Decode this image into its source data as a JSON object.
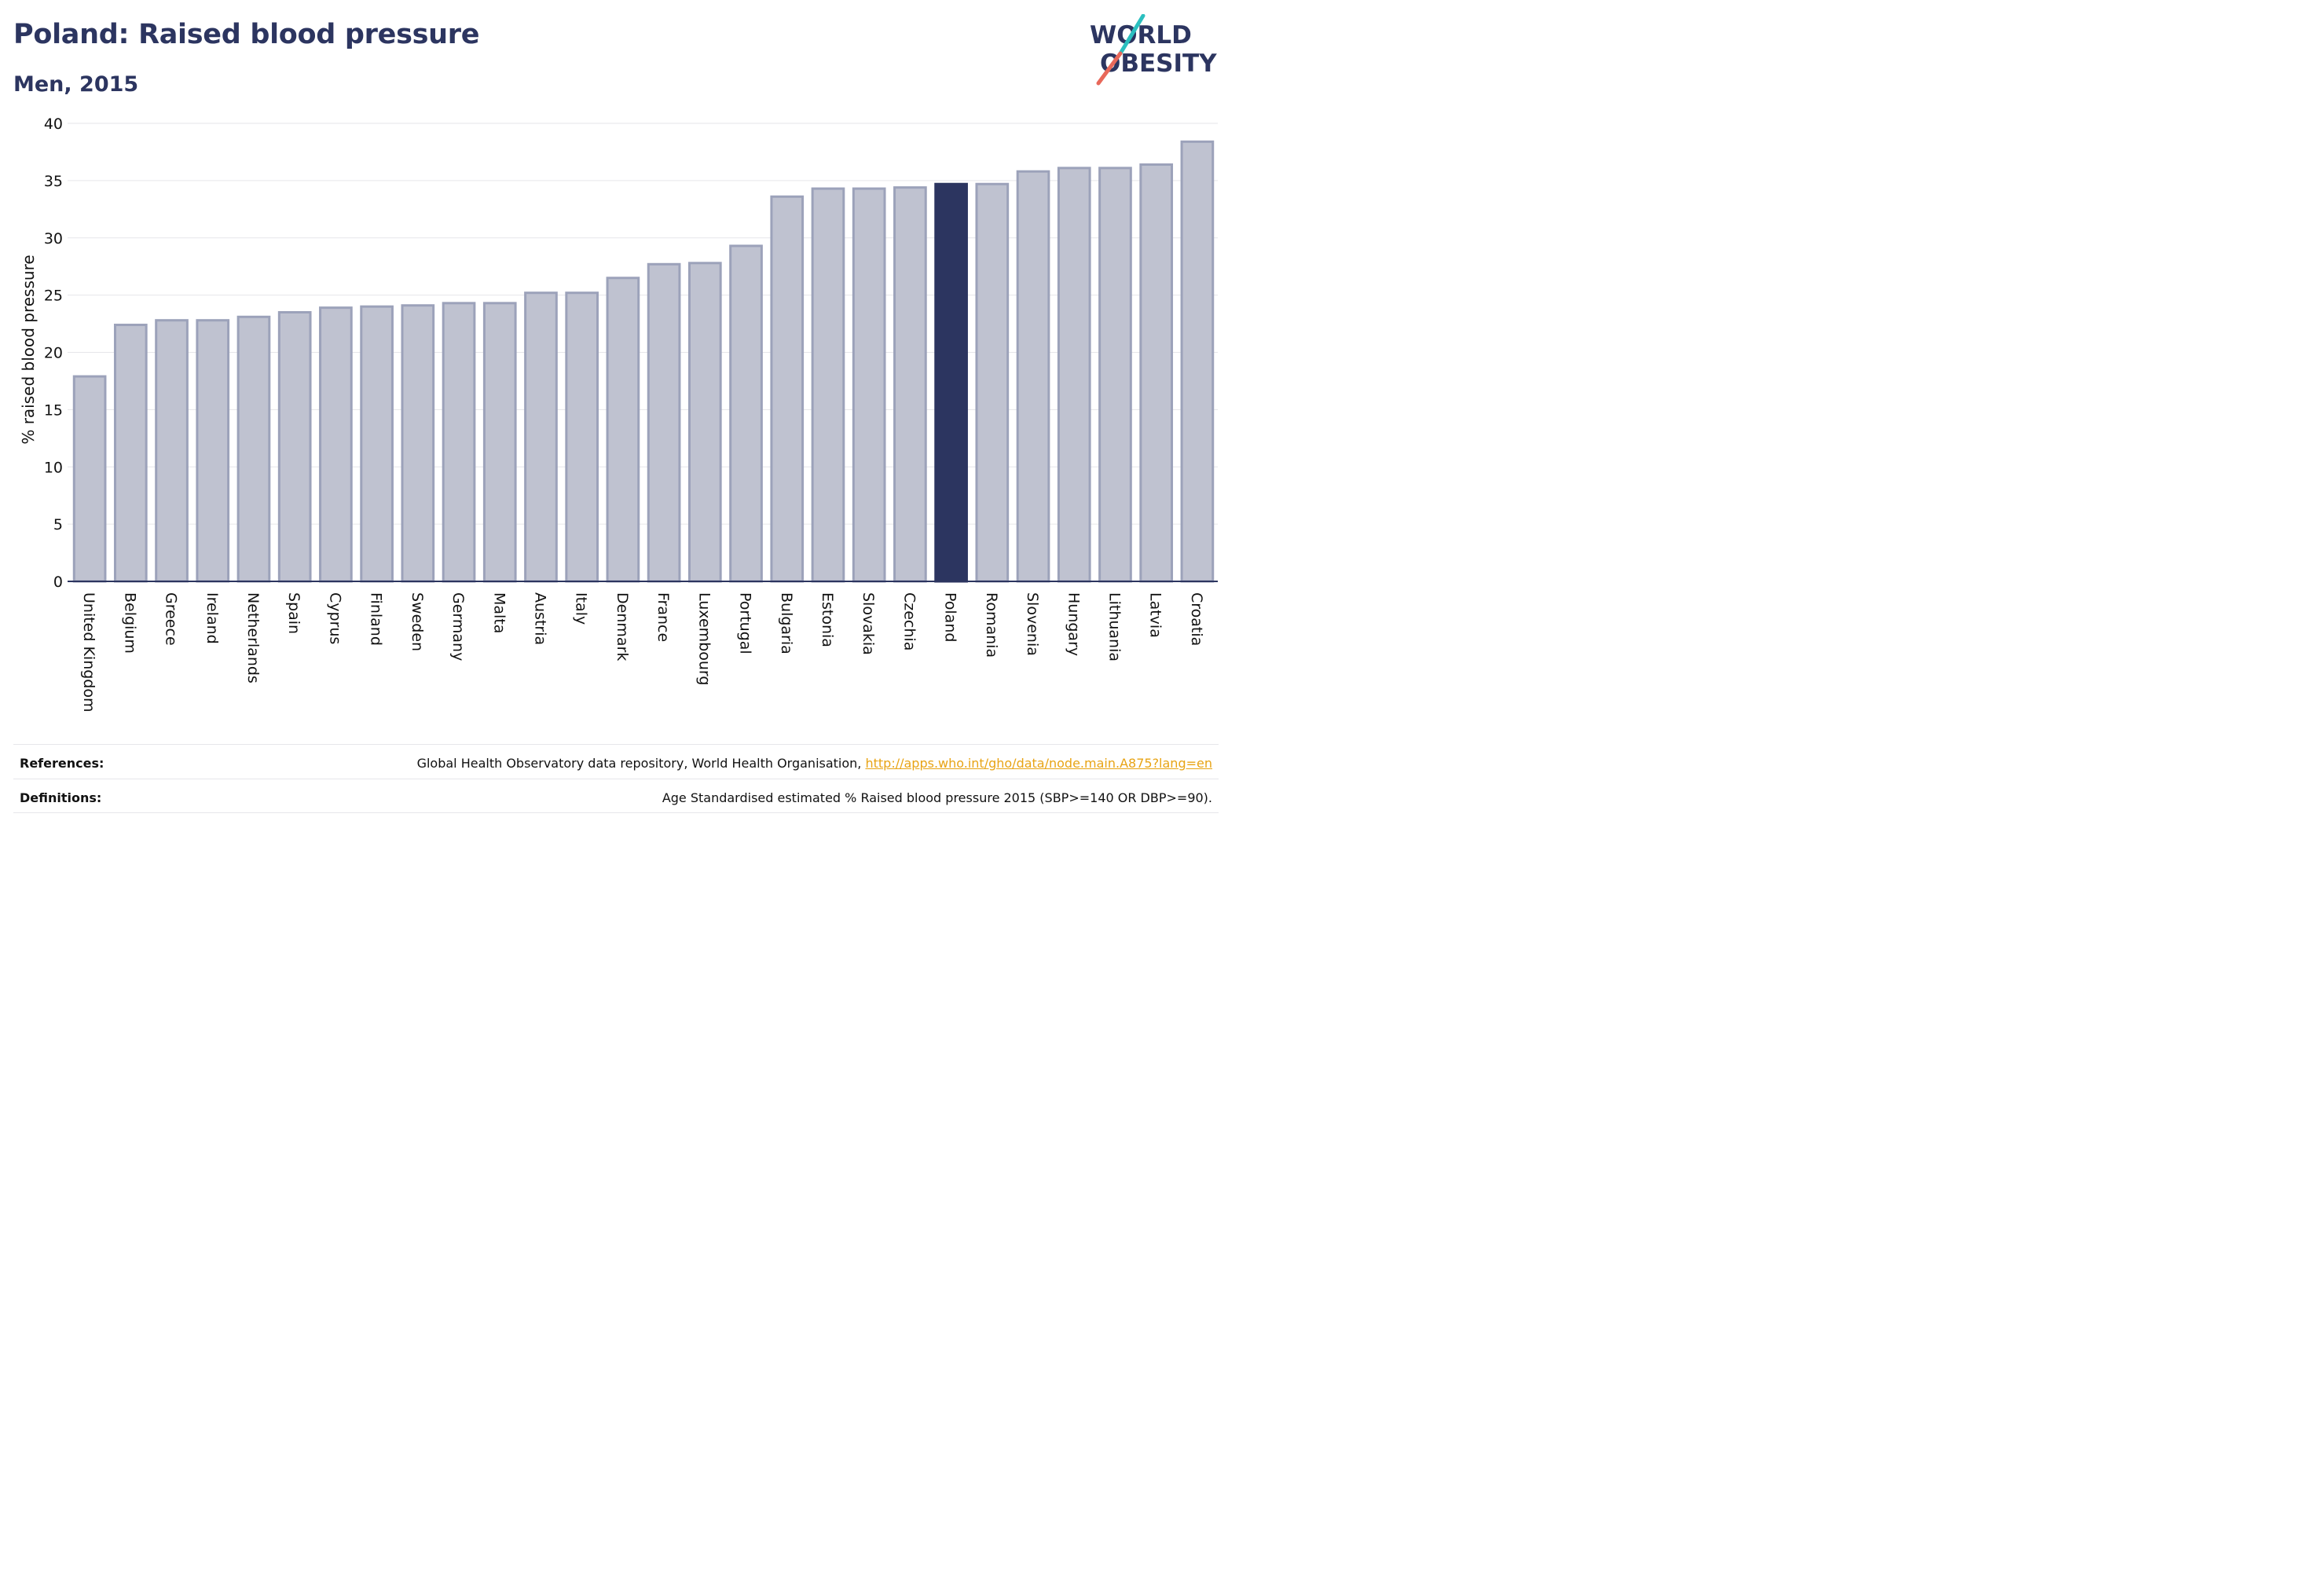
{
  "header": {
    "title": "Poland: Raised blood pressure",
    "subtitle": "Men, 2015"
  },
  "logo": {
    "line1": "WORLD",
    "line2": "OBESITY",
    "colors": {
      "text": "#2c3560",
      "teal": "#2bbfbf",
      "coral": "#e8685a"
    }
  },
  "chart_data": {
    "type": "bar",
    "title": "Poland: Raised blood pressure",
    "subtitle": "Men, 2015",
    "xlabel": "",
    "ylabel": "% raised blood pressure",
    "ylim": [
      0,
      40
    ],
    "yticks": [
      0,
      5,
      10,
      15,
      20,
      25,
      30,
      35,
      40
    ],
    "grid": true,
    "legend": "none",
    "highlight": "Poland",
    "colors": {
      "bar": "#bfc2d0",
      "bar_border": "#9ca2ba",
      "highlight": "#2c3560",
      "grid": "#e6e6ea",
      "axis": "#2c3560"
    },
    "categories": [
      "United Kingdom",
      "Belgium",
      "Greece",
      "Ireland",
      "Netherlands",
      "Spain",
      "Cyprus",
      "Finland",
      "Sweden",
      "Germany",
      "Malta",
      "Austria",
      "Italy",
      "Denmark",
      "France",
      "Luxembourg",
      "Portugal",
      "Bulgaria",
      "Estonia",
      "Slovakia",
      "Czechia",
      "Poland",
      "Romania",
      "Slovenia",
      "Hungary",
      "Lithuania",
      "Latvia",
      "Croatia"
    ],
    "values": [
      17.9,
      22.4,
      22.8,
      22.8,
      23.1,
      23.5,
      23.9,
      24.0,
      24.1,
      24.3,
      24.3,
      25.2,
      25.2,
      26.5,
      27.7,
      27.8,
      29.3,
      33.6,
      34.3,
      34.3,
      34.4,
      34.7,
      34.7,
      35.8,
      36.1,
      36.1,
      36.4,
      38.4
    ]
  },
  "footer": {
    "references_label": "References:",
    "references_text": "Global Health Observatory data repository, World Health Organisation, ",
    "references_link": "http://apps.who.int/gho/data/node.main.A875?lang=en",
    "definitions_label": "Definitions:",
    "definitions_text": "Age Standardised estimated % Raised blood pressure 2015 (SBP>=140 OR DBP>=90)."
  }
}
